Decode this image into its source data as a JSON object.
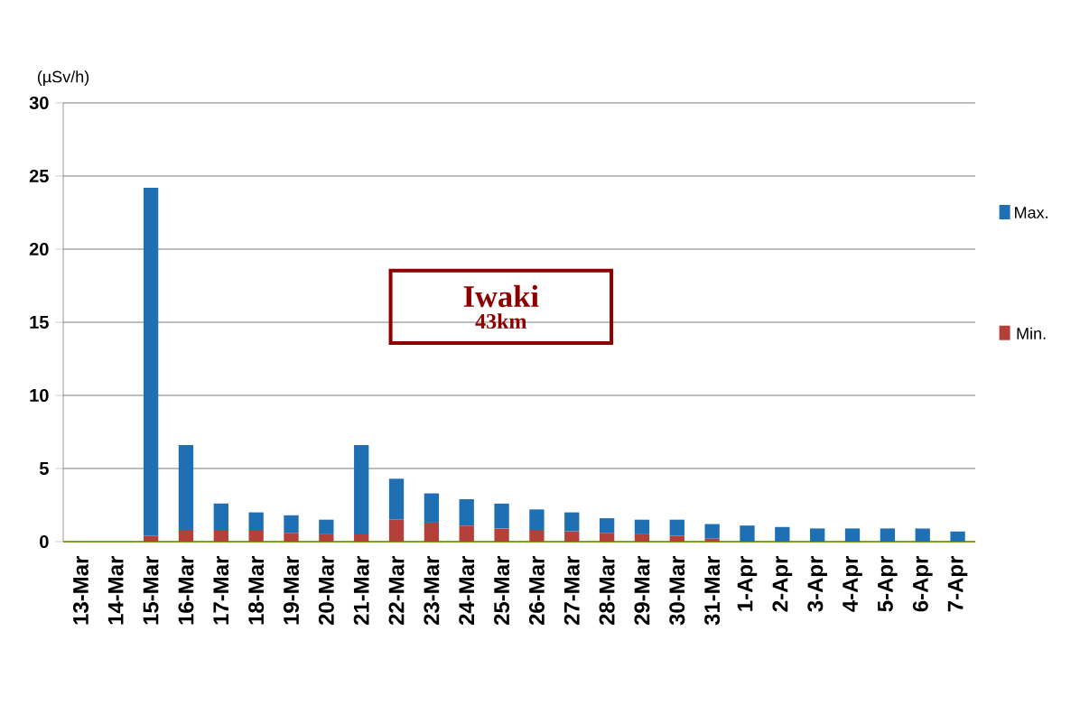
{
  "chart_data": {
    "type": "bar",
    "stacked": true,
    "ylabel": "(µSv/h)",
    "annotations": [
      "Iwaki",
      "43km"
    ],
    "categories": [
      "13-Mar",
      "14-Mar",
      "15-Mar",
      "16-Mar",
      "17-Mar",
      "18-Mar",
      "19-Mar",
      "20-Mar",
      "21-Mar",
      "22-Mar",
      "23-Mar",
      "24-Mar",
      "25-Mar",
      "26-Mar",
      "27-Mar",
      "28-Mar",
      "29-Mar",
      "30-Mar",
      "31-Mar",
      "1-Apr",
      "2-Apr",
      "3-Apr",
      "4-Apr",
      "5-Apr",
      "6-Apr",
      "7-Apr"
    ],
    "series": [
      {
        "name": "Min.",
        "color": "#b5403a",
        "values": [
          0,
          0,
          0.4,
          0.8,
          0.8,
          0.8,
          0.6,
          0.5,
          0.5,
          1.5,
          1.3,
          1.1,
          0.9,
          0.8,
          0.7,
          0.6,
          0.5,
          0.4,
          0.2,
          0,
          0,
          0,
          0,
          0,
          0,
          0
        ]
      },
      {
        "name": "Max.",
        "color": "#1f6fb5",
        "values": [
          0,
          0,
          23.8,
          5.8,
          1.8,
          1.2,
          1.2,
          1.0,
          6.1,
          2.8,
          2.0,
          1.8,
          1.7,
          1.4,
          1.3,
          1.0,
          1.0,
          1.1,
          1.0,
          1.1,
          1.0,
          0.9,
          0.9,
          0.9,
          0.9,
          0.7
        ]
      }
    ],
    "ylim": [
      0,
      30
    ],
    "yticks": [
      0,
      5,
      10,
      15,
      20,
      25,
      30
    ],
    "grid": "y",
    "legend": "right"
  }
}
